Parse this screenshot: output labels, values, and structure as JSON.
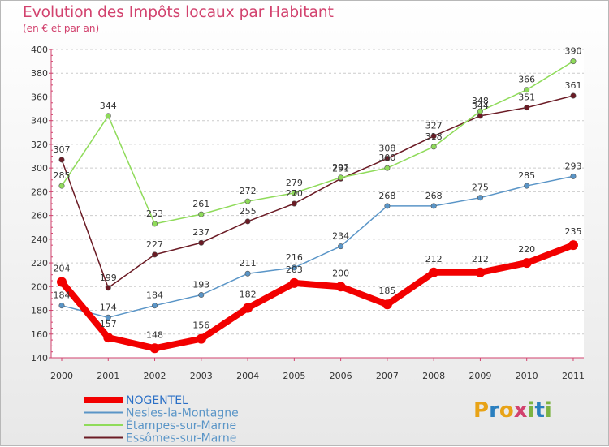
{
  "header": {
    "title": "Evolution des Impôts locaux par Habitant",
    "subtitle": "(en € et par an)"
  },
  "logo": {
    "text": "Proxiti",
    "letter_colors": [
      "#e8a317",
      "#2a7fbf",
      "#e8a317",
      "#d2426e",
      "#7cb342",
      "#2a7fbf",
      "#7cb342"
    ]
  },
  "chart_data": {
    "type": "line",
    "title": "Evolution des Impôts locaux par Habitant",
    "subtitle": "(en € et par an)",
    "xlabel": "",
    "ylabel": "",
    "x": [
      "2000",
      "2001",
      "2002",
      "2003",
      "2004",
      "2005",
      "2006",
      "2007",
      "2008",
      "2009",
      "2010",
      "2011"
    ],
    "ylim": [
      140,
      400
    ],
    "yticks": [
      140,
      160,
      180,
      200,
      220,
      240,
      260,
      280,
      300,
      320,
      340,
      360,
      380,
      400
    ],
    "grid": "horizontal dashed",
    "legend_position": "bottom-left",
    "series": [
      {
        "name": "Essômes-sur-Marne",
        "color": "#6b1b25",
        "values": [
          307,
          199,
          227,
          237,
          255,
          270,
          291,
          308,
          327,
          344,
          351,
          361
        ],
        "labels": [
          "307",
          "199",
          "227",
          "237",
          "255",
          "270",
          "291",
          "308",
          "327",
          "344",
          "351",
          "361"
        ]
      },
      {
        "name": "Étampes-sur-Marne",
        "color": "#8fdb5a",
        "values": [
          285,
          344,
          253,
          261,
          272,
          279,
          292,
          300,
          318,
          348,
          366,
          390
        ],
        "labels": [
          "285",
          "344",
          "253",
          "261",
          "272",
          "279",
          "292",
          "300",
          "318",
          "348",
          "366",
          "390"
        ]
      },
      {
        "name": "Nesles-la-Montagne",
        "color": "#5a95c7",
        "values": [
          184,
          174,
          184,
          193,
          211,
          216,
          234,
          268,
          268,
          275,
          285,
          293
        ],
        "labels": [
          "184",
          "174",
          "184",
          "193",
          "211",
          "216",
          "234",
          "268",
          "268",
          "275",
          "285",
          "293"
        ]
      },
      {
        "name": "NOGENTEL",
        "color": "#f20000",
        "values": [
          204,
          157,
          148,
          156,
          182,
          203,
          200,
          185,
          212,
          212,
          220,
          235
        ],
        "labels": [
          "204",
          "157",
          "148",
          "156",
          "182",
          "203",
          "200",
          "185",
          "212",
          "212",
          "220",
          "235"
        ]
      }
    ],
    "legend_order": [
      "NOGENTEL",
      "Nesles-la-Montagne",
      "Étampes-sur-Marne",
      "Essômes-sur-Marne"
    ]
  }
}
